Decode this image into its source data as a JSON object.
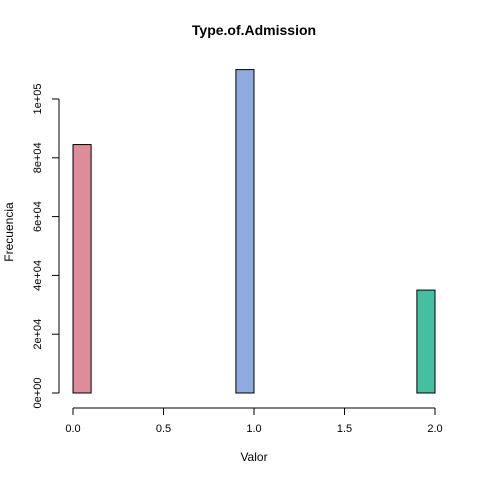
{
  "chart_data": {
    "type": "bar",
    "title": "Type.of.Admission",
    "xlabel": "Valor",
    "ylabel": "Frecuencia",
    "xlim": [
      0,
      2
    ],
    "ylim": [
      0,
      100000
    ],
    "x_ticks": [
      0.0,
      0.5,
      1.0,
      1.5,
      2.0
    ],
    "x_tick_labels": [
      "0.0",
      "0.5",
      "1.0",
      "1.5",
      "2.0"
    ],
    "y_ticks": [
      0,
      20000,
      40000,
      60000,
      80000,
      100000
    ],
    "y_tick_labels": [
      "0e+00",
      "2e+04",
      "4e+04",
      "6e+04",
      "8e+04",
      "1e+05"
    ],
    "bin_width": 0.1,
    "bins": [
      {
        "start": 0.0,
        "end": 0.1,
        "value": 84500,
        "color": "#DE8C9A"
      },
      {
        "start": 0.9,
        "end": 1.0,
        "value": 110000,
        "color": "#8EAADE"
      },
      {
        "start": 1.9,
        "end": 2.0,
        "value": 35000,
        "color": "#45BFA0"
      }
    ],
    "grid": false,
    "legend": "none"
  }
}
